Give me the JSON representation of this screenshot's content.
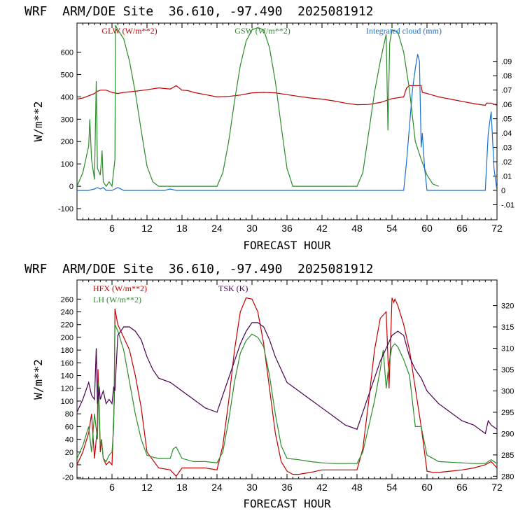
{
  "chart_data": [
    {
      "type": "line",
      "title": "WRF  ARM/DOE Site  36.610, -97.490  2025081912",
      "xlabel": "FORECAST HOUR",
      "ylabel": "W/m**2",
      "xlim": [
        0,
        72
      ],
      "ylim": [
        -150,
        730
      ],
      "y2lim": [
        -0.0205,
        0.1167
      ],
      "x_ticks": [
        6,
        12,
        18,
        24,
        30,
        36,
        42,
        48,
        54,
        60,
        66,
        72
      ],
      "y_ticks": [
        -100,
        0,
        100,
        200,
        300,
        400,
        500,
        600
      ],
      "y2_ticks": [
        -0.01,
        0,
        0.01,
        0.02,
        0.03,
        0.04,
        0.05,
        0.06,
        0.07,
        0.08,
        0.09
      ],
      "y2_tick_labels": [
        "-.01",
        "0",
        ".01",
        ".02",
        ".03",
        ".04",
        ".05",
        ".06",
        ".07",
        ".08",
        ".09"
      ],
      "grid": false,
      "legend": "top",
      "series": [
        {
          "name": "GLW (W/m**2)",
          "color": "#c00000",
          "axis": "left",
          "x": [
            0,
            1,
            2,
            3,
            3.5,
            4,
            5,
            6,
            7,
            8,
            10,
            12,
            14,
            16,
            17,
            18,
            19,
            20,
            22,
            24,
            26,
            28,
            30,
            32,
            34,
            36,
            38,
            40,
            42,
            44,
            46,
            48,
            50,
            52,
            54,
            56,
            56.5,
            57,
            58,
            59,
            59.2,
            60,
            62,
            64,
            66,
            68,
            70,
            70.2,
            71,
            72
          ],
          "y": [
            390,
            395,
            405,
            415,
            425,
            430,
            430,
            420,
            415,
            420,
            425,
            432,
            440,
            435,
            450,
            430,
            428,
            420,
            410,
            400,
            402,
            408,
            418,
            420,
            418,
            410,
            402,
            395,
            390,
            382,
            372,
            365,
            366,
            375,
            392,
            400,
            440,
            450,
            450,
            450,
            420,
            415,
            400,
            390,
            380,
            370,
            362,
            372,
            372,
            362
          ]
        },
        {
          "name": "GSW (W/m**2)",
          "color": "#2a8c2a",
          "axis": "left",
          "x": [
            0,
            1,
            2,
            2.2,
            2.5,
            3,
            3.3,
            3.5,
            4,
            4.3,
            4.5,
            5,
            5.5,
            6,
            6.5,
            6.6,
            7,
            8,
            9,
            10,
            11,
            12,
            13,
            14,
            24,
            25,
            26,
            27,
            28,
            29,
            30,
            31,
            32,
            33,
            34,
            35,
            36,
            37,
            48,
            49,
            50,
            51,
            52,
            52.5,
            53,
            53.3,
            53.6,
            54,
            55,
            56,
            57,
            58,
            59,
            60,
            61,
            62
          ],
          "y": [
            0,
            60,
            180,
            300,
            120,
            30,
            470,
            80,
            50,
            160,
            20,
            0,
            20,
            0,
            120,
            720,
            700,
            660,
            560,
            420,
            250,
            90,
            20,
            0,
            0,
            60,
            200,
            380,
            540,
            650,
            700,
            710,
            700,
            620,
            470,
            270,
            80,
            0,
            0,
            60,
            240,
            420,
            560,
            620,
            680,
            250,
            640,
            700,
            690,
            600,
            430,
            200,
            120,
            50,
            10,
            0
          ]
        },
        {
          "name": "Integrated cloud (mm)",
          "color": "#1a6fd0",
          "axis": "right",
          "x": [
            0,
            1,
            2,
            3,
            3.5,
            4,
            4.5,
            5,
            6,
            6.5,
            7,
            8,
            9,
            10,
            15,
            16,
            17,
            18,
            20,
            30,
            40,
            50,
            56,
            56.5,
            57,
            57.5,
            58,
            58.4,
            58.7,
            59,
            59.2,
            59.6,
            60,
            70,
            70.5,
            71,
            71.5,
            72
          ],
          "y": [
            0,
            0,
            0,
            0.001,
            0.002,
            0.001,
            0.002,
            0,
            0,
            0.001,
            0.002,
            0,
            0,
            0,
            0,
            0.001,
            0,
            0,
            0,
            0,
            0,
            0,
            0,
            0.02,
            0.045,
            0.07,
            0.085,
            0.095,
            0.09,
            0.03,
            0.04,
            0.015,
            0,
            0,
            0.04,
            0.055,
            0.015,
            0
          ]
        }
      ]
    },
    {
      "type": "line",
      "title": "WRF  ARM/DOE Site  36.610, -97.490  2025081912",
      "xlabel": "FORECAST HOUR",
      "ylabel": "W/m**2",
      "xlim": [
        0,
        72
      ],
      "ylim": [
        -22,
        290
      ],
      "y2lim": [
        279.4,
        326.0
      ],
      "x_ticks": [
        6,
        12,
        18,
        24,
        30,
        36,
        42,
        48,
        54,
        60,
        66,
        72
      ],
      "y_ticks": [
        -20,
        0,
        20,
        40,
        60,
        80,
        100,
        120,
        140,
        160,
        180,
        200,
        220,
        240,
        260
      ],
      "y2_ticks": [
        280,
        285,
        290,
        295,
        300,
        305,
        310,
        315,
        320
      ],
      "grid": false,
      "legend": "top-left",
      "series": [
        {
          "name": "HFX (W/m**2)",
          "color": "#c00000",
          "axis": "left",
          "x": [
            0,
            1,
            2,
            2.5,
            3,
            3.5,
            3.6,
            4,
            4.2,
            4.5,
            5,
            5.5,
            6,
            6.4,
            6.5,
            7,
            8,
            9,
            10,
            11,
            12,
            14,
            16,
            17,
            18,
            20,
            22,
            24,
            25,
            26,
            27,
            28,
            29,
            30,
            31,
            32,
            33,
            34,
            35,
            36,
            37,
            38,
            40,
            42,
            44,
            46,
            48,
            49,
            50,
            51,
            52,
            53,
            53.5,
            54,
            54.3,
            54.5,
            55,
            56,
            57,
            58,
            59,
            60,
            61,
            62,
            64,
            66,
            68,
            70,
            71,
            72
          ],
          "y": [
            0,
            20,
            50,
            80,
            10,
            60,
            150,
            20,
            40,
            10,
            0,
            5,
            0,
            100,
            245,
            220,
            200,
            180,
            140,
            90,
            20,
            -5,
            -8,
            -18,
            -5,
            -5,
            -5,
            -8,
            30,
            100,
            180,
            240,
            262,
            260,
            240,
            190,
            120,
            50,
            5,
            -10,
            -15,
            -15,
            -12,
            -8,
            -8,
            -8,
            -8,
            25,
            100,
            180,
            230,
            240,
            120,
            262,
            255,
            260,
            250,
            220,
            180,
            120,
            60,
            -10,
            -12,
            -12,
            -10,
            -8,
            -5,
            0,
            5,
            -5
          ]
        },
        {
          "name": "LH (W/m**2)",
          "color": "#2a8c2a",
          "axis": "left",
          "x": [
            0,
            1,
            2,
            2.5,
            3,
            3.5,
            3.7,
            4,
            4.2,
            4.5,
            5,
            5.5,
            6,
            6.3,
            6.5,
            7,
            8,
            9,
            10,
            11,
            12,
            13,
            14,
            16,
            16.5,
            17,
            18,
            20,
            22,
            24,
            25,
            26,
            27,
            28,
            29,
            30,
            31,
            32,
            33,
            34,
            35,
            36,
            38,
            40,
            42,
            44,
            46,
            48,
            49,
            50,
            51,
            52,
            52.5,
            53,
            53.5,
            54,
            54.5,
            55,
            56,
            57,
            58,
            59,
            60,
            62,
            64,
            66,
            68,
            70,
            71,
            72
          ],
          "y": [
            10,
            30,
            60,
            20,
            80,
            40,
            130,
            30,
            40,
            10,
            5,
            15,
            20,
            60,
            220,
            210,
            180,
            130,
            80,
            40,
            15,
            12,
            10,
            10,
            25,
            28,
            10,
            5,
            5,
            3,
            20,
            70,
            130,
            175,
            195,
            205,
            200,
            185,
            140,
            80,
            30,
            10,
            8,
            5,
            3,
            2,
            2,
            2,
            20,
            60,
            100,
            150,
            180,
            120,
            160,
            185,
            190,
            185,
            165,
            140,
            60,
            60,
            15,
            5,
            4,
            3,
            2,
            2,
            8,
            2
          ]
        },
        {
          "name": "TSK (K)",
          "color": "#4a0050",
          "axis": "right",
          "x": [
            0,
            1,
            2,
            2.5,
            3,
            3.3,
            3.5,
            3.8,
            4,
            4.5,
            5,
            5.5,
            6,
            6.3,
            6.5,
            7,
            8,
            9,
            10,
            11,
            12,
            13,
            14,
            16,
            17,
            18,
            20,
            22,
            24,
            25,
            26,
            27,
            28,
            29,
            30,
            31,
            32,
            33,
            34,
            35,
            36,
            38,
            40,
            42,
            44,
            46,
            48,
            49,
            50,
            51,
            52,
            53,
            54,
            55,
            56,
            57,
            58,
            59,
            60,
            62,
            64,
            66,
            68,
            70,
            70.5,
            71,
            72
          ],
          "y": [
            295,
            298,
            302,
            299,
            298,
            310,
            297,
            301,
            298,
            300,
            297,
            298,
            297,
            301,
            300,
            313,
            315,
            315,
            314,
            312,
            308,
            305,
            303,
            302,
            301,
            300,
            298,
            296,
            295,
            299,
            303,
            307,
            311,
            314,
            316,
            316,
            315,
            312,
            308,
            305,
            302,
            300,
            298,
            296,
            294,
            292,
            291,
            295,
            299,
            303,
            307,
            310,
            313,
            314,
            313,
            308,
            305,
            303,
            300,
            297,
            295,
            293,
            292,
            290,
            293,
            292,
            291
          ]
        }
      ]
    }
  ]
}
